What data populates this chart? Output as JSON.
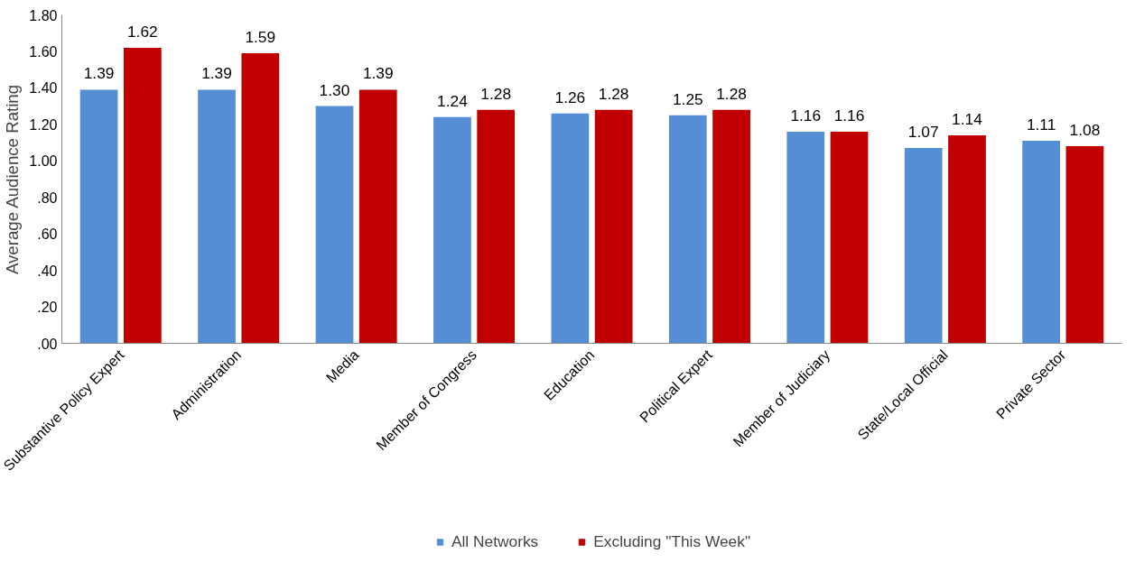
{
  "chart_data": {
    "type": "bar",
    "ylabel": "Average Audience Rating",
    "categories": [
      "Substantive Policy Expert",
      "Administration",
      "Media",
      "Member of Congress",
      "Education",
      "Political Expert",
      "Member of Judiciary",
      "State/Local Official",
      "Private Sector"
    ],
    "series": [
      {
        "name": "All Networks",
        "color": "#558ed5",
        "values": [
          1.39,
          1.39,
          1.3,
          1.24,
          1.26,
          1.25,
          1.16,
          1.07,
          1.11
        ],
        "value_labels": [
          "1.39",
          "1.39",
          "1.30",
          "1.24",
          "1.26",
          "1.25",
          "1.16",
          "1.07",
          "1.11"
        ]
      },
      {
        "name": "Excluding \"This Week\"",
        "color": "#c00000",
        "values": [
          1.62,
          1.59,
          1.39,
          1.28,
          1.28,
          1.28,
          1.16,
          1.14,
          1.08
        ],
        "value_labels": [
          "1.62",
          "1.59",
          "1.39",
          "1.28",
          "1.28",
          "1.28",
          "1.16",
          "1.14",
          "1.08"
        ]
      }
    ],
    "ylim": [
      0,
      1.8
    ],
    "yticks": [
      {
        "value": 0,
        "label": ".00"
      },
      {
        "value": 0.2,
        "label": ".20"
      },
      {
        "value": 0.4,
        "label": ".40"
      },
      {
        "value": 0.6,
        "label": ".60"
      },
      {
        "value": 0.8,
        "label": ".80"
      },
      {
        "value": 1.0,
        "label": "1.00"
      },
      {
        "value": 1.2,
        "label": "1.20"
      },
      {
        "value": 1.4,
        "label": "1.40"
      },
      {
        "value": 1.6,
        "label": "1.60"
      },
      {
        "value": 1.8,
        "label": "1.80"
      }
    ],
    "grid": false,
    "legend": "bottom"
  }
}
